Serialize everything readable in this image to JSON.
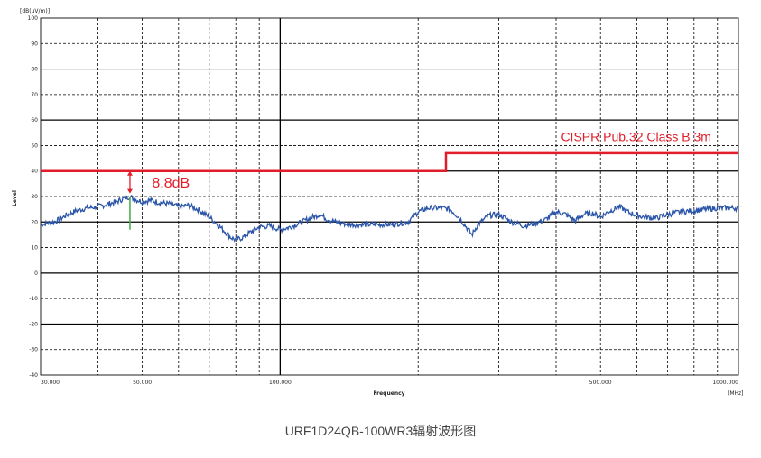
{
  "chart_data": {
    "type": "line",
    "ylabel": "Level",
    "xlabel": "Frequency",
    "y_unit": "[dB(uV/m)]",
    "x_unit": "[MHz]",
    "x_scale": "log",
    "xlim": [
      30,
      1000
    ],
    "ylim": [
      -40,
      100
    ],
    "y_ticks": [
      -40,
      -30,
      -20,
      -10,
      0,
      10,
      20,
      30,
      40,
      50,
      60,
      70,
      80,
      90,
      100
    ],
    "x_tick_labels": [
      {
        "value": 30,
        "label": "30.000"
      },
      {
        "value": 50,
        "label": "50.000"
      },
      {
        "value": 100,
        "label": "100.000"
      },
      {
        "value": 500,
        "label": "500.000"
      },
      {
        "value": 1000,
        "label": "1000.000"
      }
    ],
    "grid": true,
    "limit_series": {
      "name": "CISPR Pub.32 Class B 3m",
      "points": [
        [
          30,
          40
        ],
        [
          230,
          40
        ],
        [
          230,
          47
        ],
        [
          1000,
          47
        ]
      ],
      "color": "#e11d2a"
    },
    "measurement_series": {
      "color": "#2b55a8",
      "points": [
        [
          30,
          19
        ],
        [
          31,
          19.5
        ],
        [
          32,
          20
        ],
        [
          33,
          21
        ],
        [
          34,
          22.5
        ],
        [
          35,
          23.5
        ],
        [
          36,
          24.5
        ],
        [
          38,
          25.5
        ],
        [
          40,
          26
        ],
        [
          42,
          27
        ],
        [
          44,
          28
        ],
        [
          46,
          29.5
        ],
        [
          47,
          30
        ],
        [
          48,
          29
        ],
        [
          50,
          28
        ],
        [
          52,
          28.5
        ],
        [
          55,
          27.5
        ],
        [
          58,
          27
        ],
        [
          60,
          26
        ],
        [
          63,
          26.5
        ],
        [
          66,
          25
        ],
        [
          70,
          22
        ],
        [
          73,
          19
        ],
        [
          76,
          16
        ],
        [
          78,
          14
        ],
        [
          80,
          13
        ],
        [
          83,
          14
        ],
        [
          86,
          16
        ],
        [
          90,
          18
        ],
        [
          95,
          18.5
        ],
        [
          100,
          17
        ],
        [
          105,
          18
        ],
        [
          110,
          19.5
        ],
        [
          118,
          22
        ],
        [
          122,
          23
        ],
        [
          127,
          21
        ],
        [
          135,
          19.5
        ],
        [
          145,
          19
        ],
        [
          160,
          19
        ],
        [
          175,
          19
        ],
        [
          190,
          20
        ],
        [
          200,
          24
        ],
        [
          210,
          25.5
        ],
        [
          225,
          25.5
        ],
        [
          235,
          25
        ],
        [
          245,
          22
        ],
        [
          255,
          18
        ],
        [
          262,
          15
        ],
        [
          270,
          19
        ],
        [
          285,
          22.5
        ],
        [
          300,
          23
        ],
        [
          320,
          20
        ],
        [
          340,
          18.5
        ],
        [
          360,
          19.5
        ],
        [
          380,
          21
        ],
        [
          400,
          24
        ],
        [
          420,
          23
        ],
        [
          440,
          20.5
        ],
        [
          460,
          23
        ],
        [
          480,
          23.5
        ],
        [
          500,
          22
        ],
        [
          520,
          24
        ],
        [
          550,
          26
        ],
        [
          580,
          23.5
        ],
        [
          620,
          22
        ],
        [
          660,
          21.5
        ],
        [
          700,
          23
        ],
        [
          750,
          24
        ],
        [
          800,
          24.5
        ],
        [
          850,
          25
        ],
        [
          900,
          25.5
        ],
        [
          950,
          25.5
        ],
        [
          1000,
          25.5
        ]
      ]
    },
    "annotations": [
      {
        "text": "8.8dB",
        "x": 47,
        "y_from": 31.2,
        "y_to": 40,
        "color": "#e11d2a"
      }
    ],
    "marker": {
      "x": 47,
      "y_low": 17,
      "y_high": 30,
      "color": "#4caf50"
    }
  },
  "caption": "URF1D24QB-100WR3辐射波形图"
}
